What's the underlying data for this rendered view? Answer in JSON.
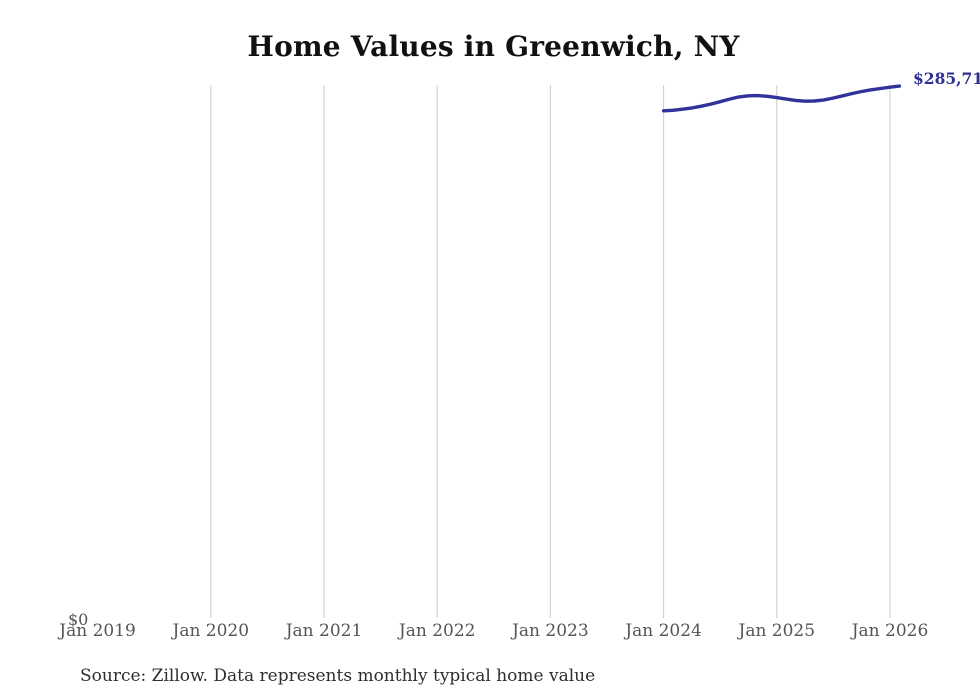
{
  "page": {
    "background": "#ffffff"
  },
  "chart_data": {
    "type": "line",
    "title": "Home Values in Greenwich, NY",
    "xlabel": "",
    "ylabel": "",
    "x_ticks": [
      "Jan 2019",
      "Jan 2020",
      "Jan 2021",
      "Jan 2022",
      "Jan 2023",
      "Jan 2024",
      "Jan 2025",
      "Jan 2026"
    ],
    "y_axis": {
      "min": 0,
      "min_label": "$0"
    },
    "grid": "vertical-only, no gridline at Jan 2019",
    "legend": "none",
    "end_label": "$285,71",
    "end_label_truncated_by_image_edge": true,
    "line_color": "#32329b",
    "end_label_color": "#2f2f93",
    "gridline_color": "#cccccc",
    "tick_label_color": "#555555",
    "series": [
      {
        "name": "Monthly typical home value",
        "start_month": "Jan 2024",
        "start_offset_months_from_jan2019": 60,
        "values": [
          272400,
          272700,
          273300,
          274000,
          274900,
          276000,
          277300,
          278700,
          279900,
          280500,
          280600,
          280200,
          279500,
          278700,
          278000,
          277600,
          277700,
          278300,
          279300,
          280500,
          281700,
          282800,
          283700,
          284400,
          285100,
          285710
        ]
      }
    ]
  },
  "source_note": "Source: Zillow. Data represents monthly typical home value"
}
